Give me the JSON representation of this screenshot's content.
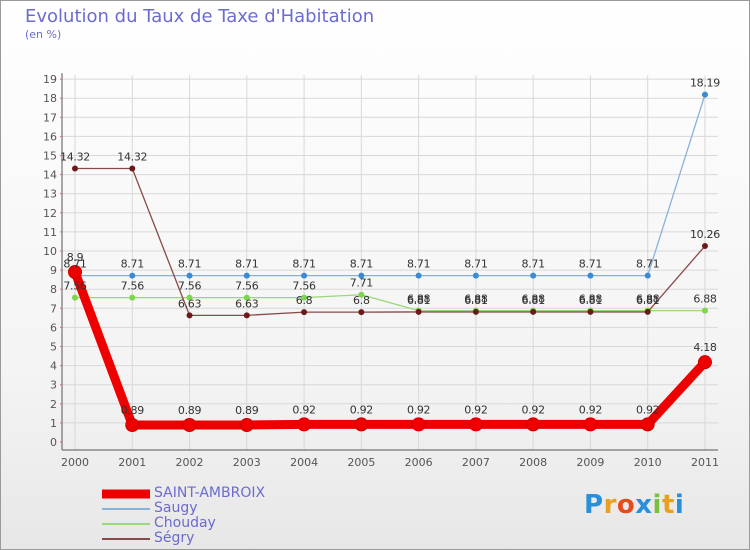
{
  "title": "Evolution du Taux de Taxe d'Habitation",
  "subtitle": "(en %)",
  "logo_text": "Proxiti",
  "colors": {
    "text": "#6b6bd0",
    "axis": "#555555",
    "grid": "#d8d8d8"
  },
  "chart_data": {
    "type": "line",
    "title": "Evolution du Taux de Taxe d'Habitation",
    "ylabel": "(en %)",
    "xlabel": "",
    "categories": [
      "2000",
      "2001",
      "2002",
      "2003",
      "2004",
      "2005",
      "2006",
      "2007",
      "2008",
      "2009",
      "2010",
      "2011"
    ],
    "ylim": [
      0,
      19
    ],
    "yticks": [
      0,
      1,
      2,
      3,
      4,
      5,
      6,
      7,
      8,
      9,
      10,
      11,
      12,
      13,
      14,
      15,
      16,
      17,
      18,
      19
    ],
    "grid": true,
    "legend_position": "bottom-left",
    "series": [
      {
        "name": "SAINT-AMBROIX",
        "color": "#ee0000",
        "emphasis": true,
        "values": [
          8.9,
          0.89,
          0.89,
          0.89,
          0.92,
          0.92,
          0.92,
          0.92,
          0.92,
          0.92,
          0.92,
          4.18
        ],
        "labels": [
          "8.9",
          "0.89",
          "0.89",
          "0.89",
          "0.92",
          "0.92",
          "0.92",
          "0.92",
          "0.92",
          "0.92",
          "0.92",
          "4.18"
        ]
      },
      {
        "name": "Saugy",
        "color": "#3a8bd4",
        "line_color": "#8ab2d8",
        "values": [
          8.71,
          8.71,
          8.71,
          8.71,
          8.71,
          8.71,
          8.71,
          8.71,
          8.71,
          8.71,
          8.71,
          18.19
        ],
        "labels": [
          "8.71",
          "8.71",
          "8.71",
          "8.71",
          "8.71",
          "8.71",
          "8.71",
          "8.71",
          "8.71",
          "8.71",
          "8.71",
          "18.19"
        ]
      },
      {
        "name": "Chouday",
        "color": "#7ad84a",
        "line_color": "#9ad87a",
        "values": [
          7.56,
          7.56,
          7.56,
          7.56,
          7.56,
          7.71,
          6.88,
          6.88,
          6.88,
          6.88,
          6.88,
          6.88
        ],
        "labels": [
          "7.56",
          "7.56",
          "7.56",
          "7.56",
          "7.56",
          "7.71",
          "6.88",
          "6.88",
          "6.88",
          "6.88",
          "6.88",
          "6.88"
        ]
      },
      {
        "name": "Ségry",
        "color": "#6b1a1a",
        "line_color": "#8a4a4a",
        "values": [
          14.32,
          14.32,
          6.63,
          6.63,
          6.8,
          6.8,
          6.81,
          6.81,
          6.81,
          6.81,
          6.81,
          10.26
        ],
        "labels": [
          "14.32",
          "14.32",
          "6.63",
          "6.63",
          "6.8",
          "6.8",
          "6.81",
          "6.81",
          "6.81",
          "6.81",
          "6.81",
          "10.26"
        ]
      }
    ]
  }
}
